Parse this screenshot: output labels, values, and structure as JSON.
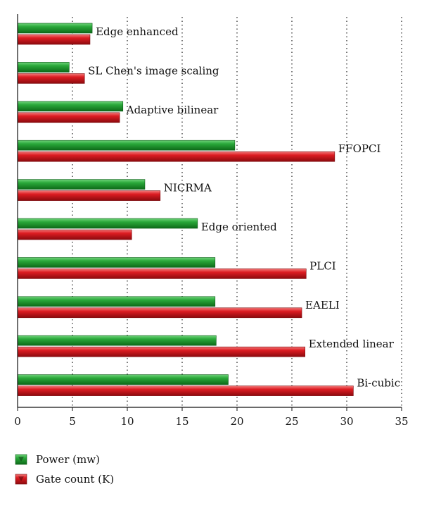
{
  "chart_data": {
    "type": "bar",
    "orientation": "horizontal",
    "categories": [
      "Edge enhanced",
      "SL Chen's image scaling",
      "Adaptive bilinear",
      "FFOPCI",
      "NICRMA",
      "Edge oriented",
      "PLCI",
      "EAELI",
      "Extended linear",
      "Bi-cubic"
    ],
    "series": [
      {
        "name": "Power (mw)",
        "color": "#1f9a2e",
        "values": [
          6.8,
          4.7,
          9.6,
          19.8,
          11.6,
          16.4,
          18.0,
          18.0,
          18.1,
          19.2
        ]
      },
      {
        "name": "Gate count (K)",
        "color": "#d8141a",
        "values": [
          6.6,
          6.1,
          9.3,
          28.9,
          13.0,
          10.4,
          26.3,
          25.9,
          26.2,
          30.6
        ]
      }
    ],
    "xlim": [
      0,
      35
    ],
    "xticks": [
      0,
      5,
      10,
      15,
      20,
      25,
      30,
      35
    ],
    "grid": "vertical dotted",
    "legend_position": "bottom-left",
    "title": "",
    "xlabel": "",
    "ylabel": ""
  }
}
